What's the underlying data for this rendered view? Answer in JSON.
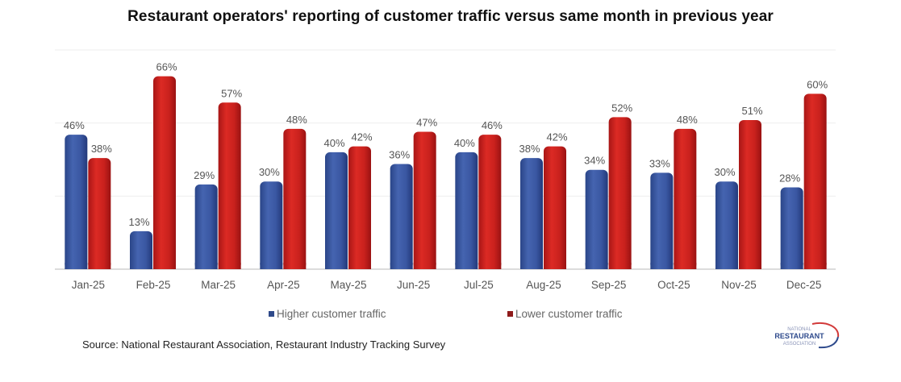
{
  "chart_data": {
    "type": "bar",
    "title": "Restaurant operators' reporting of customer traffic versus same month in previous year",
    "xlabel": "",
    "ylabel": "",
    "ylim": [
      0,
      75
    ],
    "yticks": [
      0,
      25,
      50,
      75
    ],
    "grid": true,
    "legend_position": "bottom",
    "categories": [
      "Jan-25",
      "Feb-25",
      "Mar-25",
      "Apr-25",
      "May-25",
      "Jun-25",
      "Jul-25",
      "Aug-25",
      "Sep-25",
      "Oct-25",
      "Nov-25",
      "Dec-25"
    ],
    "series": [
      {
        "name": "Higher customer traffic",
        "color": "#3a56a0",
        "values": [
          46,
          13,
          29,
          30,
          40,
          36,
          40,
          38,
          34,
          33,
          30,
          28
        ]
      },
      {
        "name": "Lower customer traffic",
        "color": "#c81e1e",
        "values": [
          38,
          66,
          57,
          48,
          42,
          47,
          46,
          42,
          52,
          48,
          51,
          60
        ]
      }
    ],
    "value_suffix": "%"
  },
  "legend": {
    "higher": "Higher customer traffic",
    "lower": "Lower customer traffic",
    "higher_color": "#2f4a8a",
    "lower_color": "#8f1b1b"
  },
  "source": "Source: National Restaurant Association, Restaurant Industry Tracking Survey",
  "logo": {
    "line1": "NATIONAL",
    "line2": "RESTAURANT",
    "line3": "ASSOCIATION"
  }
}
